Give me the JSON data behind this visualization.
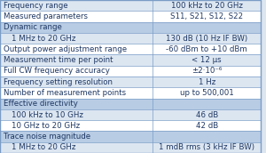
{
  "rows": [
    {
      "label": "Frequency range",
      "value": "100 kHz to 20 GHz",
      "header": false,
      "subrow": false,
      "highlight": true
    },
    {
      "label": "Measured parameters",
      "value": "S11, S21, S12, S22",
      "header": false,
      "subrow": false,
      "highlight": false
    },
    {
      "label": "Dynamic range",
      "value": "",
      "header": true,
      "subrow": false,
      "highlight": true
    },
    {
      "label": "    1 MHz to 20 GHz",
      "value": "130 dB (10 Hz IF BW)",
      "header": false,
      "subrow": true,
      "highlight": true
    },
    {
      "label": "Output power adjustment range",
      "value": "-60 dBm to +10 dBm",
      "header": false,
      "subrow": false,
      "highlight": false
    },
    {
      "label": "Measurement time per point",
      "value": "< 12 μs",
      "header": false,
      "subrow": false,
      "highlight": true
    },
    {
      "label": "Full CW frequency accuracy",
      "value": "±2·10⁻⁶",
      "header": false,
      "subrow": false,
      "highlight": false
    },
    {
      "label": "Frequency setting resolution",
      "value": "1 Hz",
      "header": false,
      "subrow": false,
      "highlight": true
    },
    {
      "label": "Number of measurement points",
      "value": "up to 500,001",
      "header": false,
      "subrow": false,
      "highlight": false
    },
    {
      "label": "Effective directivity",
      "value": "",
      "header": true,
      "subrow": false,
      "highlight": true
    },
    {
      "label": "    100 kHz to 10 GHz",
      "value": "46 dB",
      "header": false,
      "subrow": true,
      "highlight": true
    },
    {
      "label": "    10 GHz to 20 GHz",
      "value": "42 dB",
      "header": false,
      "subrow": true,
      "highlight": false
    },
    {
      "label": "Trace noise magnitude",
      "value": "",
      "header": true,
      "subrow": false,
      "highlight": true
    },
    {
      "label": "    1 MHz to 20 GHz",
      "value": "1 mdB rms (3 kHz IF BW)",
      "header": false,
      "subrow": true,
      "highlight": true
    }
  ],
  "col_split": 0.585,
  "bg_header": "#b8cce4",
  "bg_light": "#dce6f1",
  "bg_white": "#ffffff",
  "border_color": "#7a9cc6",
  "text_color": "#1f3864",
  "font_size": 6.2
}
